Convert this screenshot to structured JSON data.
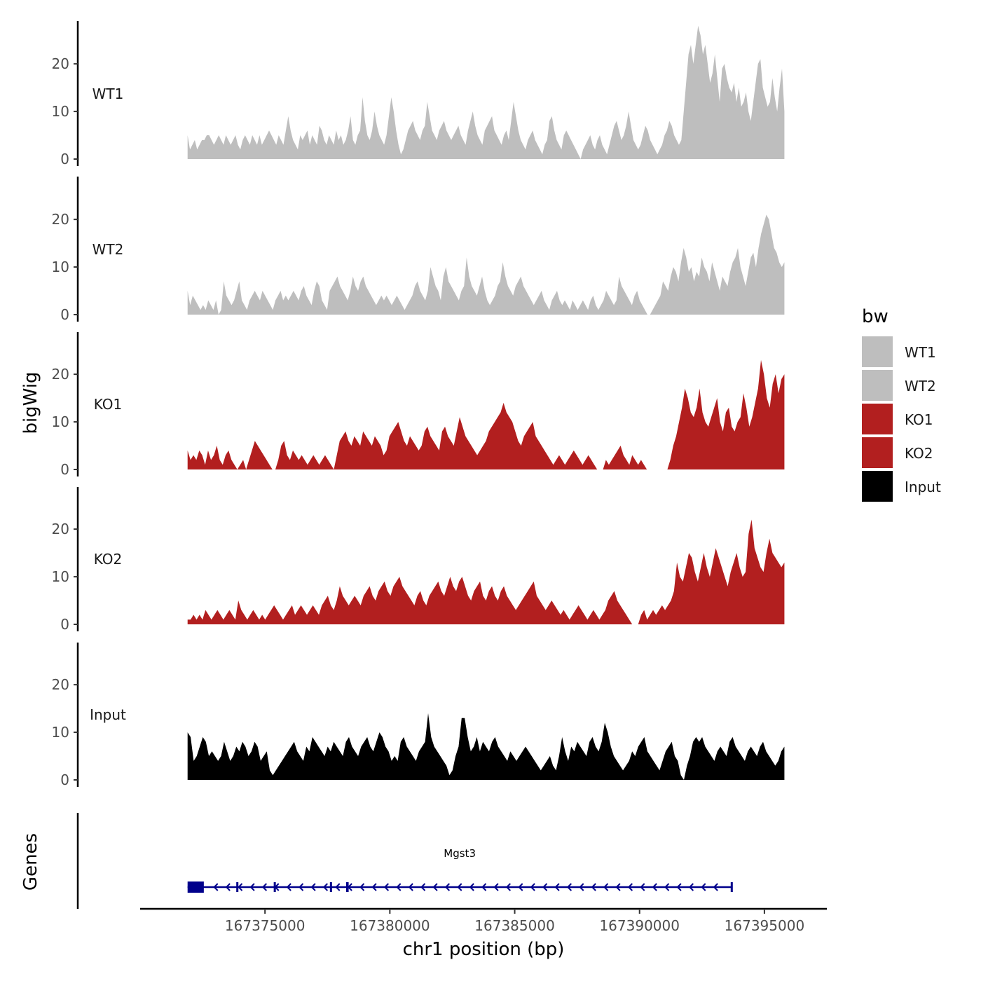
{
  "chart_data": {
    "type": "area",
    "title": "",
    "xlabel": "chr1 position (bp)",
    "ylabel": "bigWig",
    "genes_label": "Genes",
    "xlim": [
      167370000,
      167397500
    ],
    "x_range_data": [
      167371900,
      167395800
    ],
    "x_ticks": [
      167375000,
      167380000,
      167385000,
      167390000,
      167395000
    ],
    "x_tick_labels": [
      "167375000",
      "167380000",
      "167385000",
      "167390000",
      "167395000"
    ],
    "ylim": [
      0,
      29
    ],
    "y_ticks": [
      0,
      10,
      20
    ],
    "y_tick_labels": [
      "0",
      "10",
      "20"
    ],
    "legend": {
      "title": "bw",
      "position": "right",
      "entries": [
        {
          "label": "WT1",
          "color": "#bebebe"
        },
        {
          "label": "WT2",
          "color": "#bebebe"
        },
        {
          "label": "KO1",
          "color": "#b21f1f"
        },
        {
          "label": "KO2",
          "color": "#b21f1f"
        },
        {
          "label": "Input",
          "color": "#000000"
        }
      ]
    },
    "series": [
      {
        "name": "WT1",
        "color": "#bebebe",
        "values": [
          5,
          2,
          3,
          4,
          2,
          3,
          4,
          4,
          5,
          5,
          4,
          3,
          4,
          5,
          4,
          3,
          5,
          4,
          3,
          4,
          5,
          3,
          2,
          4,
          5,
          4,
          3,
          5,
          4,
          3,
          5,
          3,
          4,
          5,
          6,
          5,
          4,
          3,
          5,
          4,
          3,
          6,
          9,
          6,
          4,
          3,
          2,
          5,
          4,
          5,
          6,
          3,
          5,
          4,
          3,
          7,
          6,
          4,
          3,
          5,
          4,
          3,
          6,
          4,
          5,
          3,
          4,
          6,
          9,
          4,
          3,
          5,
          6,
          13,
          8,
          5,
          4,
          6,
          10,
          7,
          5,
          4,
          3,
          5,
          9,
          13,
          10,
          6,
          3,
          1,
          2,
          4,
          6,
          7,
          8,
          6,
          5,
          4,
          6,
          7,
          12,
          9,
          6,
          5,
          4,
          6,
          7,
          8,
          6,
          5,
          4,
          5,
          6,
          7,
          5,
          4,
          3,
          6,
          8,
          10,
          7,
          5,
          4,
          3,
          6,
          7,
          8,
          9,
          6,
          5,
          4,
          3,
          5,
          6,
          4,
          8,
          12,
          9,
          6,
          4,
          3,
          2,
          4,
          5,
          6,
          4,
          3,
          2,
          1,
          3,
          4,
          8,
          9,
          6,
          4,
          3,
          2,
          5,
          6,
          5,
          4,
          3,
          2,
          1,
          0,
          2,
          3,
          4,
          5,
          3,
          2,
          4,
          5,
          3,
          2,
          1,
          3,
          5,
          7,
          8,
          6,
          4,
          5,
          7,
          10,
          7,
          4,
          3,
          2,
          3,
          5,
          7,
          6,
          4,
          3,
          2,
          1,
          2,
          3,
          5,
          6,
          8,
          7,
          5,
          4,
          3,
          4,
          10,
          16,
          22,
          24,
          20,
          24,
          28,
          26,
          22,
          24,
          20,
          16,
          18,
          22,
          17,
          12,
          19,
          20,
          17,
          15,
          14,
          16,
          12,
          15,
          11,
          12,
          14,
          10,
          8,
          12,
          16,
          20,
          21,
          15,
          13,
          11,
          12,
          17,
          13,
          10,
          15,
          19,
          10
        ]
      },
      {
        "name": "WT2",
        "color": "#bebebe",
        "values": [
          5,
          2,
          4,
          3,
          2,
          1,
          2,
          1,
          3,
          2,
          1,
          3,
          0,
          1,
          7,
          4,
          3,
          2,
          3,
          5,
          7,
          3,
          2,
          1,
          3,
          4,
          5,
          4,
          3,
          5,
          4,
          3,
          2,
          1,
          3,
          4,
          5,
          3,
          4,
          3,
          4,
          5,
          4,
          3,
          5,
          6,
          4,
          3,
          2,
          5,
          7,
          6,
          3,
          2,
          1,
          5,
          6,
          7,
          8,
          6,
          5,
          4,
          3,
          5,
          8,
          6,
          5,
          7,
          8,
          6,
          5,
          4,
          3,
          2,
          3,
          4,
          3,
          4,
          3,
          2,
          3,
          4,
          3,
          2,
          1,
          2,
          3,
          4,
          6,
          7,
          5,
          4,
          3,
          5,
          10,
          8,
          6,
          5,
          3,
          8,
          10,
          7,
          6,
          5,
          4,
          3,
          5,
          6,
          12,
          8,
          6,
          5,
          4,
          6,
          8,
          5,
          3,
          2,
          3,
          4,
          6,
          7,
          11,
          8,
          6,
          5,
          4,
          6,
          7,
          8,
          6,
          5,
          4,
          3,
          2,
          3,
          4,
          5,
          3,
          2,
          1,
          3,
          4,
          5,
          3,
          2,
          3,
          2,
          1,
          3,
          2,
          1,
          2,
          3,
          2,
          1,
          3,
          4,
          2,
          1,
          2,
          3,
          5,
          4,
          3,
          2,
          3,
          8,
          6,
          5,
          4,
          3,
          2,
          4,
          5,
          3,
          2,
          1,
          0,
          0,
          1,
          2,
          3,
          4,
          7,
          6,
          5,
          8,
          10,
          9,
          7,
          11,
          14,
          12,
          9,
          10,
          7,
          9,
          8,
          12,
          10,
          9,
          7,
          11,
          9,
          7,
          5,
          8,
          7,
          6,
          9,
          11,
          12,
          14,
          10,
          8,
          6,
          9,
          12,
          13,
          10,
          14,
          17,
          19,
          21,
          20,
          17,
          14,
          13,
          11,
          10,
          11
        ]
      },
      {
        "name": "KO1",
        "color": "#b21f1f",
        "values": [
          4,
          2,
          3,
          2,
          4,
          3,
          1,
          4,
          2,
          3,
          5,
          2,
          1,
          3,
          4,
          2,
          1,
          0,
          1,
          2,
          0,
          2,
          4,
          6,
          5,
          4,
          3,
          2,
          1,
          0,
          0,
          2,
          5,
          6,
          3,
          2,
          4,
          3,
          2,
          3,
          2,
          1,
          2,
          3,
          2,
          1,
          2,
          3,
          2,
          1,
          0,
          3,
          6,
          7,
          8,
          6,
          5,
          7,
          6,
          5,
          8,
          7,
          6,
          5,
          7,
          6,
          5,
          3,
          4,
          7,
          8,
          9,
          10,
          8,
          6,
          5,
          7,
          6,
          5,
          4,
          5,
          8,
          9,
          7,
          6,
          5,
          4,
          8,
          9,
          7,
          6,
          5,
          8,
          11,
          9,
          7,
          6,
          5,
          4,
          3,
          4,
          5,
          6,
          8,
          9,
          10,
          11,
          12,
          14,
          12,
          11,
          10,
          8,
          6,
          5,
          7,
          8,
          9,
          10,
          7,
          6,
          5,
          4,
          3,
          2,
          1,
          2,
          3,
          2,
          1,
          2,
          3,
          4,
          3,
          2,
          1,
          2,
          3,
          2,
          1,
          0,
          0,
          0,
          2,
          1,
          2,
          3,
          4,
          5,
          3,
          2,
          1,
          3,
          2,
          1,
          2,
          1,
          0,
          0,
          0,
          0,
          0,
          0,
          0,
          0,
          2,
          5,
          7,
          10,
          13,
          17,
          15,
          12,
          11,
          13,
          17,
          12,
          10,
          9,
          11,
          13,
          15,
          10,
          8,
          12,
          13,
          9,
          8,
          10,
          11,
          16,
          13,
          9,
          11,
          14,
          17,
          23,
          20,
          15,
          13,
          18,
          20,
          16,
          19,
          20
        ]
      },
      {
        "name": "KO2",
        "color": "#b21f1f",
        "values": [
          1,
          1,
          2,
          1,
          2,
          1,
          3,
          2,
          1,
          2,
          3,
          2,
          1,
          2,
          3,
          2,
          1,
          5,
          3,
          2,
          1,
          2,
          3,
          2,
          1,
          2,
          1,
          2,
          3,
          4,
          3,
          2,
          1,
          2,
          3,
          4,
          2,
          3,
          4,
          3,
          2,
          3,
          4,
          3,
          2,
          4,
          5,
          6,
          4,
          3,
          5,
          8,
          6,
          5,
          4,
          5,
          6,
          5,
          4,
          6,
          7,
          8,
          6,
          5,
          7,
          8,
          9,
          7,
          6,
          8,
          9,
          10,
          8,
          7,
          6,
          5,
          4,
          6,
          7,
          5,
          4,
          6,
          7,
          8,
          9,
          7,
          6,
          8,
          10,
          8,
          7,
          9,
          10,
          8,
          6,
          5,
          7,
          8,
          9,
          6,
          5,
          7,
          8,
          6,
          5,
          7,
          8,
          6,
          5,
          4,
          3,
          4,
          5,
          6,
          7,
          8,
          9,
          6,
          5,
          4,
          3,
          4,
          5,
          4,
          3,
          2,
          3,
          2,
          1,
          2,
          3,
          4,
          3,
          2,
          1,
          2,
          3,
          2,
          1,
          2,
          3,
          5,
          6,
          7,
          5,
          4,
          3,
          2,
          1,
          0,
          0,
          0,
          2,
          3,
          1,
          2,
          3,
          2,
          3,
          4,
          3,
          4,
          5,
          7,
          13,
          10,
          9,
          12,
          15,
          14,
          11,
          9,
          12,
          15,
          12,
          10,
          13,
          16,
          14,
          12,
          10,
          8,
          11,
          13,
          15,
          12,
          10,
          11,
          19,
          22,
          16,
          14,
          12,
          11,
          15,
          18,
          15,
          14,
          13,
          12,
          13
        ]
      },
      {
        "name": "Input",
        "color": "#000000",
        "values": [
          10,
          9,
          4,
          5,
          7,
          9,
          8,
          5,
          6,
          5,
          4,
          5,
          8,
          6,
          4,
          5,
          7,
          6,
          8,
          7,
          5,
          6,
          8,
          7,
          4,
          5,
          6,
          2,
          1,
          2,
          3,
          4,
          5,
          6,
          7,
          8,
          6,
          5,
          4,
          7,
          6,
          9,
          8,
          7,
          6,
          5,
          7,
          6,
          8,
          7,
          6,
          5,
          8,
          9,
          7,
          6,
          5,
          7,
          8,
          9,
          7,
          6,
          8,
          10,
          9,
          7,
          6,
          4,
          5,
          4,
          8,
          9,
          7,
          6,
          5,
          4,
          6,
          7,
          8,
          14,
          9,
          7,
          6,
          5,
          4,
          3,
          1,
          2,
          5,
          7,
          13,
          13,
          9,
          6,
          7,
          9,
          6,
          8,
          7,
          6,
          8,
          9,
          7,
          6,
          5,
          4,
          6,
          5,
          4,
          5,
          6,
          7,
          6,
          5,
          4,
          3,
          2,
          3,
          4,
          5,
          3,
          2,
          5,
          9,
          6,
          4,
          7,
          6,
          8,
          7,
          6,
          5,
          8,
          9,
          7,
          6,
          8,
          12,
          10,
          7,
          5,
          4,
          3,
          2,
          3,
          4,
          6,
          5,
          7,
          8,
          9,
          6,
          5,
          4,
          3,
          2,
          4,
          6,
          7,
          8,
          5,
          4,
          1,
          0,
          3,
          5,
          8,
          9,
          8,
          9,
          7,
          6,
          5,
          4,
          6,
          7,
          6,
          5,
          8,
          9,
          7,
          6,
          5,
          4,
          6,
          7,
          6,
          5,
          7,
          8,
          6,
          5,
          4,
          3,
          4,
          6,
          7
        ]
      }
    ],
    "gene_track": {
      "label": "Mgst3",
      "strand": "-",
      "start": 167371900,
      "end": 167393700,
      "color": "#00008b",
      "exons": [
        [
          167371900,
          167372550
        ],
        [
          167373850,
          167373900
        ],
        [
          167375350,
          167375400
        ],
        [
          167377600,
          167377650
        ],
        [
          167378250,
          167378350
        ],
        [
          167393650,
          167393700
        ]
      ]
    }
  }
}
